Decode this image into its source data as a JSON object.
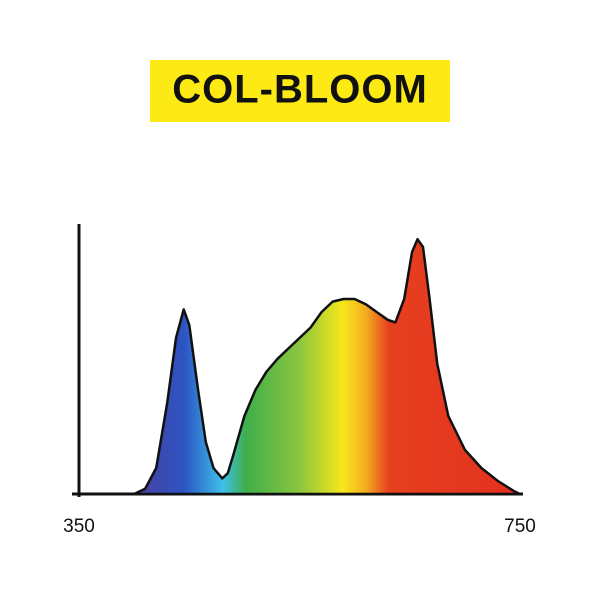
{
  "chart_data": {
    "type": "area",
    "title": "COL-BLOOM",
    "x": [
      400,
      410,
      420,
      430,
      438,
      445,
      450,
      458,
      465,
      472,
      480,
      485,
      490,
      500,
      510,
      520,
      530,
      540,
      550,
      560,
      570,
      580,
      590,
      600,
      610,
      620,
      630,
      637,
      645,
      652,
      657,
      662,
      668,
      675,
      685,
      700,
      715,
      730,
      745,
      750
    ],
    "values": [
      0,
      2,
      10,
      35,
      60,
      71,
      65,
      40,
      20,
      10,
      6,
      8,
      15,
      30,
      40,
      47,
      52,
      56,
      60,
      64,
      70,
      74,
      75,
      75,
      73,
      70,
      67,
      66,
      75,
      93,
      98,
      95,
      75,
      50,
      30,
      17,
      10,
      5,
      1,
      0
    ],
    "xlim": [
      350,
      750
    ],
    "xticks": [
      350,
      750
    ],
    "ylim": [
      0,
      100
    ]
  }
}
